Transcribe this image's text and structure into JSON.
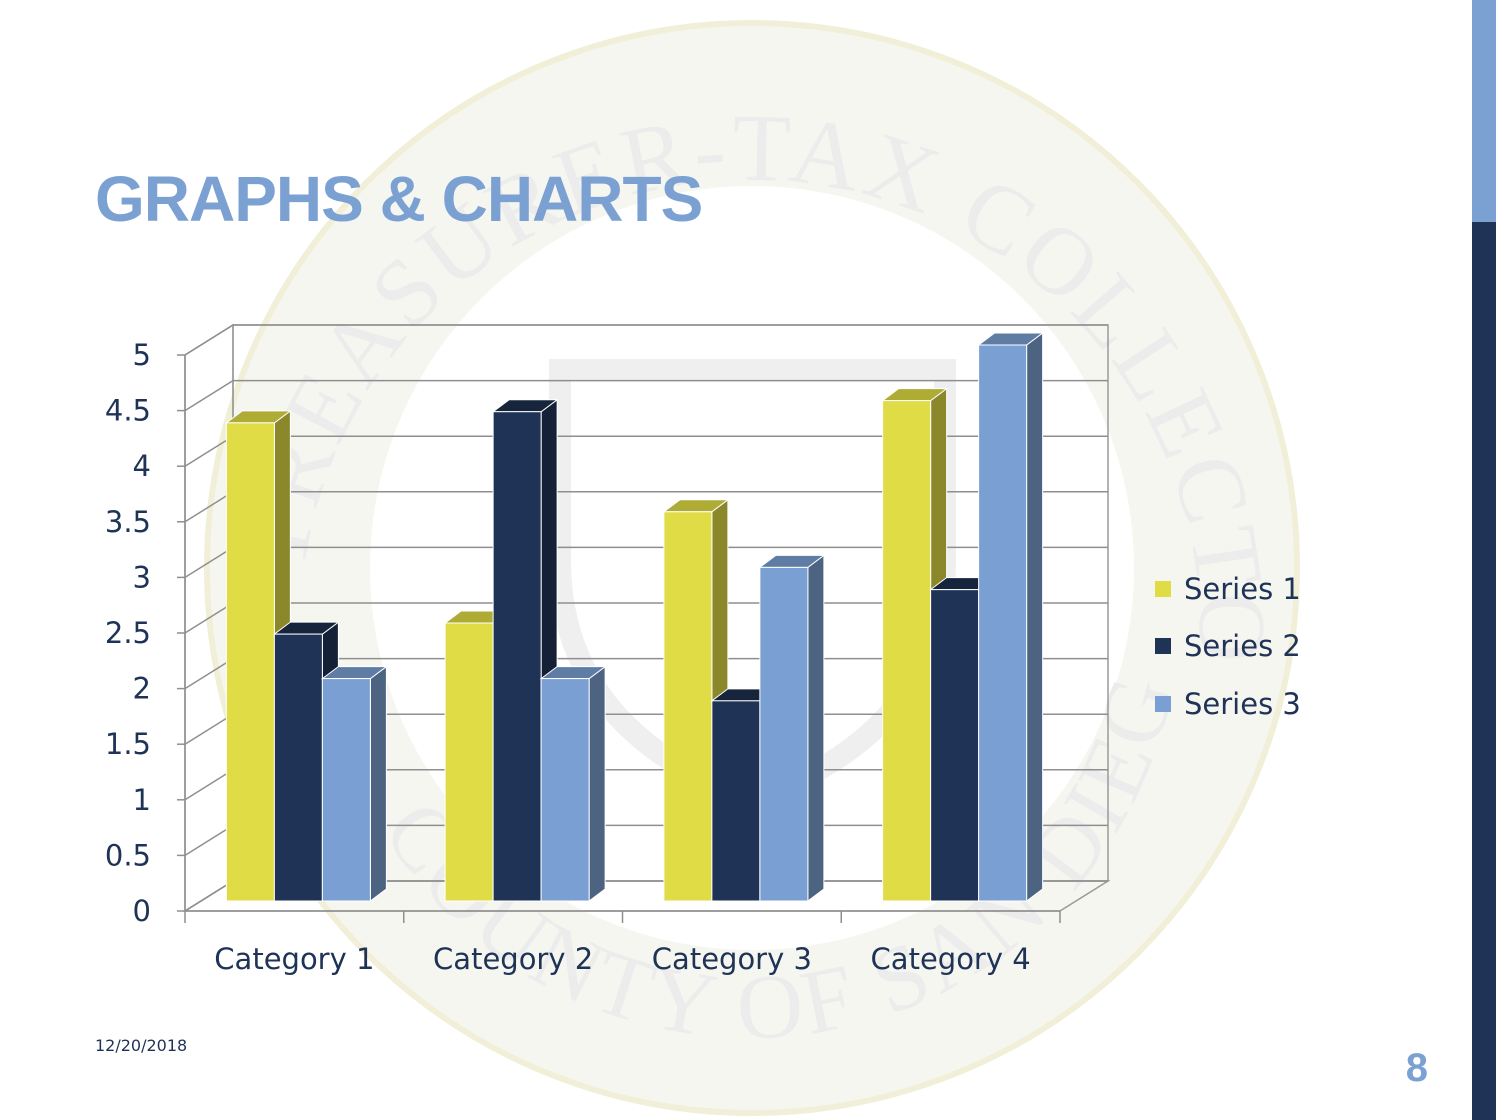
{
  "slide": {
    "title": "GRAPHS & CHARTS",
    "date": "12/20/2018",
    "page_number": "8"
  },
  "chart_data": {
    "type": "bar",
    "style": "3d-clustered-column",
    "categories": [
      "Category 1",
      "Category 2",
      "Category 3",
      "Category 4"
    ],
    "series": [
      {
        "name": "Series 1",
        "values": [
          4.3,
          2.5,
          3.5,
          4.5
        ],
        "color": "#e0dc45"
      },
      {
        "name": "Series 2",
        "values": [
          2.4,
          4.4,
          1.8,
          2.8
        ],
        "color": "#1f3356"
      },
      {
        "name": "Series 3",
        "values": [
          2,
          2,
          3,
          5
        ],
        "color": "#7a9fd2"
      }
    ],
    "yticks": [
      "0",
      "0.5",
      "1",
      "1.5",
      "2",
      "2.5",
      "3",
      "3.5",
      "4",
      "4.5",
      "5"
    ],
    "ylim": [
      0,
      5
    ],
    "grid": true,
    "legend_position": "right"
  },
  "theme": {
    "accent_light": "#7ba1d3",
    "accent_dark": "#1f3356",
    "text": "#1f3356"
  }
}
